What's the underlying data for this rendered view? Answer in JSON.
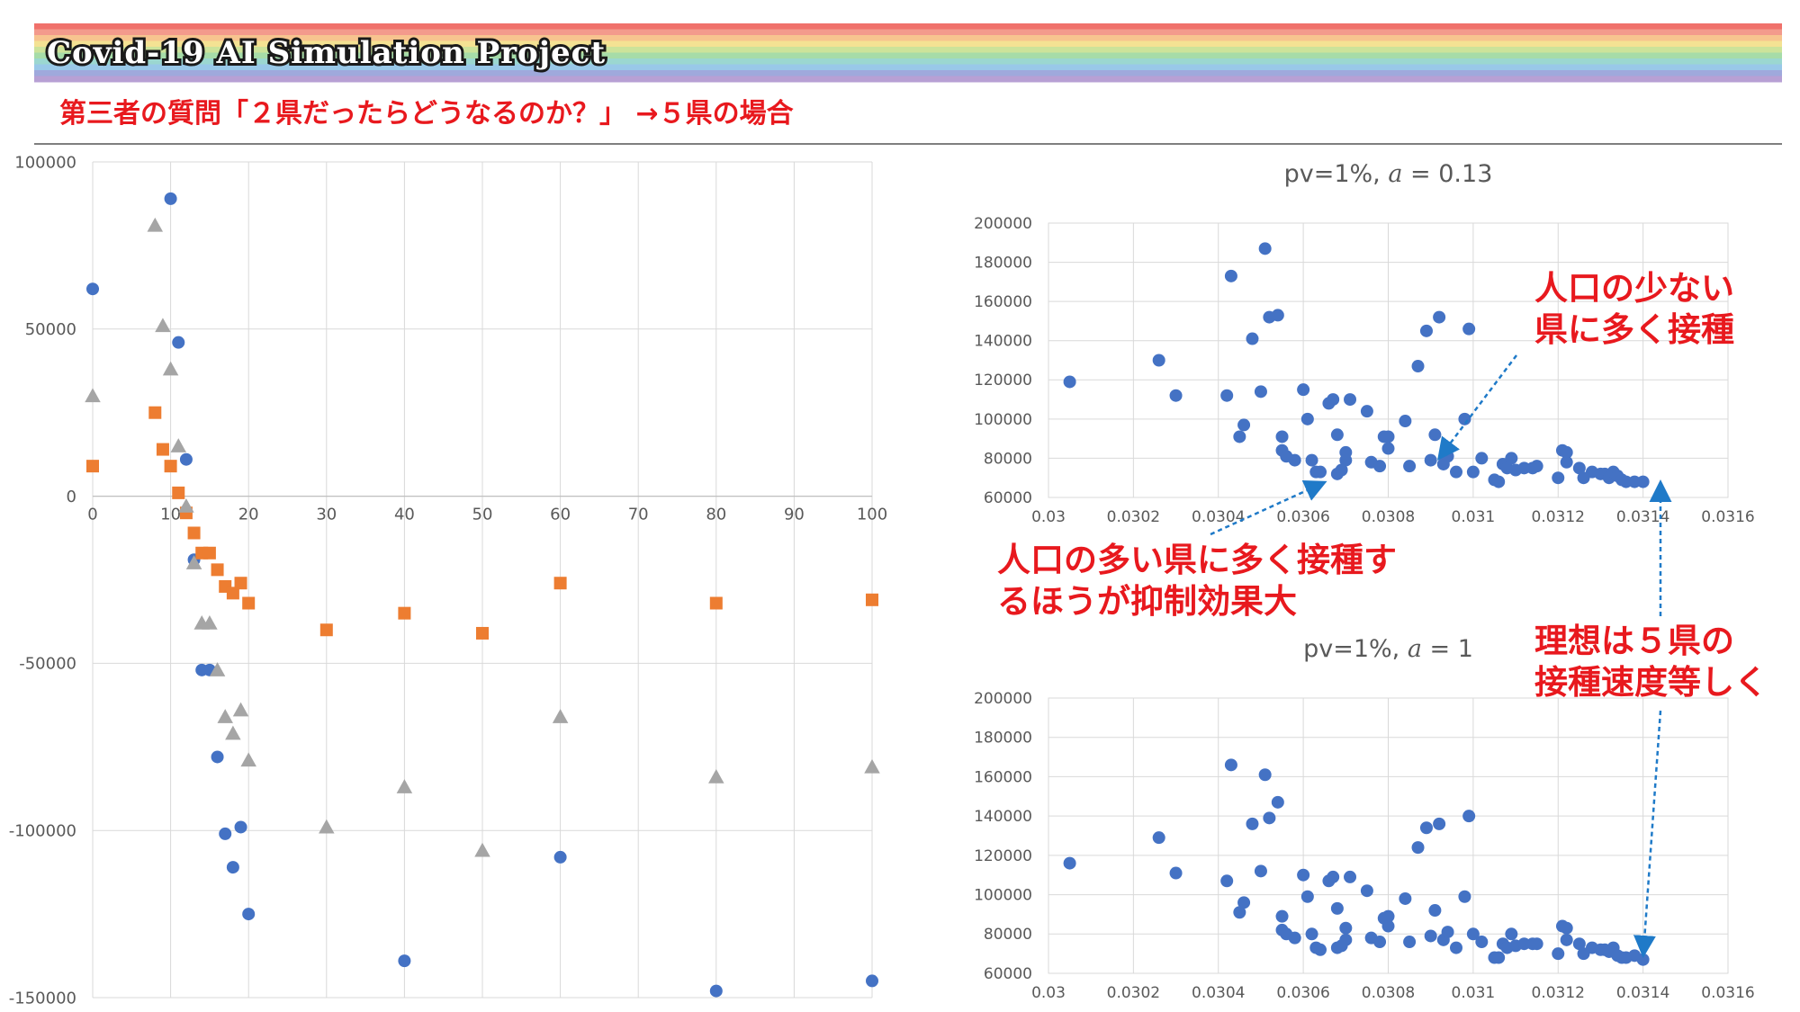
{
  "header": {
    "project_title": "Covid-19 AI Simulation Project",
    "subtitle": "第三者の質問「２県だったらどうなるのか？」 →５県の場合"
  },
  "colors": {
    "rainbow": [
      "#f0716b",
      "#f39a8c",
      "#f7c48f",
      "#f4e293",
      "#cce39a",
      "#a6dca8",
      "#9bd7d0",
      "#99c8e8",
      "#9fa9dc",
      "#b7a0d4"
    ],
    "subtitle": "#e8191e",
    "annotation": "#e8191e",
    "series_circle": "#4472c4",
    "series_square": "#ed7d31",
    "series_triangle": "#a5a5a5",
    "arrow": "#1f7ac8",
    "grid": "#d9d9d9"
  },
  "annotations": {
    "top_right": [
      "人口の少ない",
      "県に多く接種"
    ],
    "middle_left": [
      "人口の多い県に多く接種す",
      "るほうが抑制効果大"
    ],
    "bottom_right": [
      "理想は５県の",
      "接種速度等しく"
    ]
  },
  "chart_data": [
    {
      "type": "scatter",
      "title": "",
      "xlabel": "",
      "ylabel": "",
      "xlim": [
        0,
        100
      ],
      "ylim": [
        -150000,
        100000
      ],
      "xticks": [
        0,
        10,
        20,
        30,
        40,
        50,
        60,
        70,
        80,
        90,
        100
      ],
      "yticks": [
        -150000,
        -100000,
        -50000,
        0,
        50000,
        100000
      ],
      "grid": true,
      "series": [
        {
          "marker": "circle",
          "color": "#4472c4",
          "x": [
            0,
            10,
            11,
            12,
            13,
            14,
            15,
            16,
            17,
            18,
            19,
            20,
            40,
            60,
            80,
            100
          ],
          "y": [
            62000,
            89000,
            46000,
            11000,
            -19000,
            -52000,
            -52000,
            -78000,
            -101000,
            -111000,
            -99000,
            -125000,
            -139000,
            -108000,
            -148000,
            -145000
          ]
        },
        {
          "marker": "square",
          "color": "#ed7d31",
          "x": [
            0,
            8,
            9,
            10,
            11,
            12,
            13,
            14,
            15,
            16,
            17,
            18,
            19,
            20,
            30,
            40,
            50,
            60,
            80,
            100
          ],
          "y": [
            9000,
            25000,
            14000,
            9000,
            1000,
            -5000,
            -11000,
            -17000,
            -17000,
            -22000,
            -27000,
            -29000,
            -26000,
            -32000,
            -40000,
            -35000,
            -41000,
            -26000,
            -32000,
            -31000
          ]
        },
        {
          "marker": "triangle",
          "color": "#a5a5a5",
          "x": [
            0,
            8,
            9,
            10,
            11,
            12,
            13,
            14,
            15,
            16,
            17,
            18,
            19,
            20,
            30,
            40,
            50,
            60,
            80,
            100
          ],
          "y": [
            30000,
            81000,
            51000,
            38000,
            15000,
            -3000,
            -20000,
            -38000,
            -38000,
            -52000,
            -66000,
            -71000,
            -64000,
            -79000,
            -99000,
            -87000,
            -106000,
            -66000,
            -84000,
            -81000
          ]
        }
      ]
    },
    {
      "type": "scatter",
      "title": "pv=1%, a = 0.13",
      "title_prefix": "pv=1%,",
      "title_var": "a",
      "title_value": "= 0.13",
      "xlabel": "",
      "ylabel": "",
      "xlim": [
        0.03,
        0.0316
      ],
      "ylim": [
        60000,
        200000
      ],
      "xticks": [
        "0.03",
        "0.0302",
        "0.0304",
        "0.0306",
        "0.0308",
        "0.031",
        "0.0312",
        "0.0314",
        "0.0316"
      ],
      "yticks": [
        "60000",
        "80000",
        "100000",
        "120000",
        "140000",
        "160000",
        "180000",
        "200000"
      ],
      "grid": true,
      "series": [
        {
          "marker": "circle",
          "color": "#4472c4",
          "x": [
            0.03005,
            0.03026,
            0.0303,
            0.03042,
            0.03043,
            0.03045,
            0.03046,
            0.03048,
            0.0305,
            0.03051,
            0.03052,
            0.03054,
            0.03055,
            0.03055,
            0.03056,
            0.03058,
            0.0306,
            0.03061,
            0.03062,
            0.03063,
            0.03064,
            0.03066,
            0.03067,
            0.03068,
            0.03068,
            0.03069,
            0.0307,
            0.0307,
            0.03071,
            0.03075,
            0.03076,
            0.03078,
            0.03079,
            0.0308,
            0.0308,
            0.03084,
            0.03085,
            0.03087,
            0.03089,
            0.0309,
            0.03091,
            0.03092,
            0.03093,
            0.03094,
            0.03096,
            0.03098,
            0.03099,
            0.031,
            0.03102,
            0.03105,
            0.03106,
            0.03107,
            0.03108,
            0.03109,
            0.0311,
            0.03112,
            0.03114,
            0.03115,
            0.0312,
            0.03121,
            0.03122,
            0.03122,
            0.03125,
            0.03126,
            0.03128,
            0.0313,
            0.03131,
            0.03132,
            0.03133,
            0.03134,
            0.03135,
            0.03136,
            0.03138,
            0.0314
          ],
          "y": [
            119000,
            130000,
            112000,
            112000,
            173000,
            91000,
            97000,
            141000,
            114000,
            187000,
            152000,
            153000,
            84000,
            91000,
            81000,
            79000,
            115000,
            100000,
            79000,
            73000,
            73000,
            108000,
            110000,
            72000,
            92000,
            74000,
            83000,
            79000,
            110000,
            104000,
            78000,
            76000,
            91000,
            85000,
            91000,
            99000,
            76000,
            127000,
            145000,
            79000,
            92000,
            152000,
            77000,
            81000,
            73000,
            100000,
            146000,
            73000,
            80000,
            69000,
            68000,
            77000,
            75000,
            80000,
            74000,
            75000,
            75000,
            76000,
            70000,
            84000,
            78000,
            83000,
            75000,
            70000,
            73000,
            72000,
            72000,
            70000,
            73000,
            71000,
            69000,
            68000,
            68000,
            68000
          ]
        }
      ]
    },
    {
      "type": "scatter",
      "title": "pv=1%, a = 1",
      "title_prefix": "pv=1%,",
      "title_var": "a",
      "title_value": "= 1",
      "xlabel": "",
      "ylabel": "",
      "xlim": [
        0.03,
        0.0316
      ],
      "ylim": [
        60000,
        200000
      ],
      "xticks": [
        "0.03",
        "0.0302",
        "0.0304",
        "0.0306",
        "0.0308",
        "0.031",
        "0.0312",
        "0.0314",
        "0.0316"
      ],
      "yticks": [
        "60000",
        "80000",
        "100000",
        "120000",
        "140000",
        "160000",
        "180000",
        "200000"
      ],
      "grid": true,
      "series": [
        {
          "marker": "circle",
          "color": "#4472c4",
          "x": [
            0.03005,
            0.03026,
            0.0303,
            0.03042,
            0.03043,
            0.03045,
            0.03046,
            0.03048,
            0.0305,
            0.03051,
            0.03052,
            0.03054,
            0.03055,
            0.03055,
            0.03056,
            0.03058,
            0.0306,
            0.03061,
            0.03062,
            0.03063,
            0.03064,
            0.03066,
            0.03067,
            0.03068,
            0.03068,
            0.03069,
            0.0307,
            0.0307,
            0.03071,
            0.03075,
            0.03076,
            0.03078,
            0.03079,
            0.0308,
            0.0308,
            0.03084,
            0.03085,
            0.03087,
            0.03089,
            0.0309,
            0.03091,
            0.03092,
            0.03093,
            0.03094,
            0.03096,
            0.03098,
            0.03099,
            0.031,
            0.03102,
            0.03105,
            0.03106,
            0.03107,
            0.03108,
            0.03109,
            0.0311,
            0.03112,
            0.03114,
            0.03115,
            0.0312,
            0.03121,
            0.03122,
            0.03122,
            0.03125,
            0.03126,
            0.03128,
            0.0313,
            0.03131,
            0.03132,
            0.03133,
            0.03134,
            0.03135,
            0.03136,
            0.03138,
            0.0314
          ],
          "y": [
            116000,
            129000,
            111000,
            107000,
            166000,
            91000,
            96000,
            136000,
            112000,
            161000,
            139000,
            147000,
            82000,
            89000,
            80000,
            78000,
            110000,
            99000,
            80000,
            73000,
            72000,
            107000,
            109000,
            73000,
            93000,
            74000,
            83000,
            77000,
            109000,
            102000,
            78000,
            76000,
            88000,
            84000,
            89000,
            98000,
            76000,
            124000,
            134000,
            79000,
            92000,
            136000,
            77000,
            81000,
            73000,
            99000,
            140000,
            80000,
            76000,
            68000,
            68000,
            75000,
            73000,
            80000,
            74000,
            75000,
            75000,
            75000,
            70000,
            84000,
            77000,
            83000,
            75000,
            70000,
            73000,
            72000,
            72000,
            71000,
            73000,
            69000,
            68000,
            68000,
            69000,
            67000
          ]
        }
      ]
    }
  ]
}
